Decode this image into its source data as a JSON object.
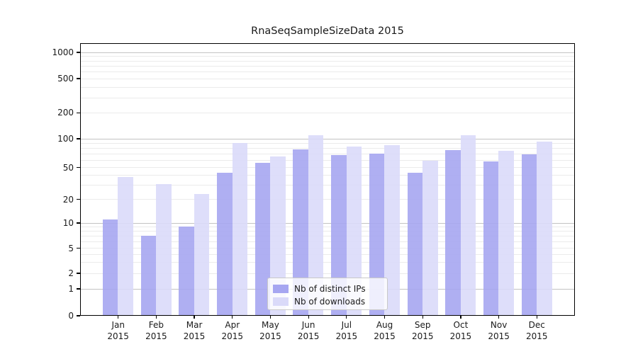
{
  "figure": {
    "background": "#ffffff",
    "axis_color": "#000000",
    "text_color": "#1a1a1a",
    "grid_major_color": "#c3c3c3",
    "grid_minor_color": "#ebebeb"
  },
  "chart_data": {
    "type": "bar",
    "title": "RnaSeqSampleSizeData 2015",
    "categories": [
      "Jan",
      "Feb",
      "Mar",
      "Apr",
      "May",
      "Jun",
      "Jul",
      "Aug",
      "Sep",
      "Oct",
      "Nov",
      "Dec"
    ],
    "category_year": "2015",
    "series": [
      {
        "name": "Nb of distinct IPs",
        "color": "#a6a6f1",
        "values": [
          11,
          7,
          9,
          43,
          56,
          77,
          67,
          69,
          43,
          76,
          58,
          68
        ]
      },
      {
        "name": "Nb of downloads",
        "color": "#dadaf9",
        "values": [
          38,
          31,
          23,
          90,
          65,
          110,
          83,
          85,
          59,
          109,
          74,
          93
        ]
      }
    ],
    "y_axis": {
      "ticks": [
        0,
        1,
        2,
        5,
        10,
        20,
        50,
        100,
        200,
        500,
        1000
      ],
      "scale": "log-like with 0 at baseline",
      "grid": "horizontal major and minor gridlines"
    },
    "x_axis": {
      "label_format": "month over year, two lines"
    },
    "legend": {
      "position": "lower center inside plot"
    }
  }
}
